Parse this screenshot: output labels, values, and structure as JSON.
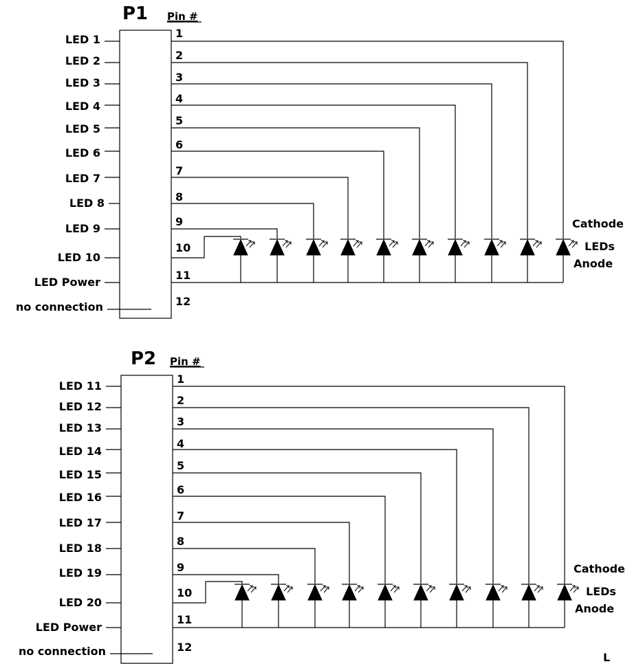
{
  "connectors": [
    {
      "title": "P1",
      "pin_header": "Pin #",
      "signals": [
        "LED 1",
        "LED 2",
        "LED 3",
        "LED 4",
        "LED 5",
        "LED 6",
        "LED 7",
        "LED 8",
        "LED 9",
        "LED 10",
        "LED Power",
        "no connection"
      ],
      "pins": [
        "1",
        "2",
        "3",
        "4",
        "5",
        "6",
        "7",
        "8",
        "9",
        "10",
        "11",
        "12"
      ],
      "side_labels": [
        "Cathode",
        "LEDs",
        "Anode"
      ],
      "led_count": 10
    },
    {
      "title": "P2",
      "pin_header": "Pin #",
      "signals": [
        "LED 11",
        "LED 12",
        "LED 13",
        "LED 14",
        "LED 15",
        "LED 16",
        "LED 17",
        "LED 18",
        "LED 19",
        "LED 20",
        "LED Power",
        "no connection"
      ],
      "pins": [
        "1",
        "2",
        "3",
        "4",
        "5",
        "6",
        "7",
        "8",
        "9",
        "10",
        "11",
        "12"
      ],
      "side_labels": [
        "Cathode",
        "LEDs",
        "Anode"
      ],
      "led_count": 10
    }
  ],
  "corner_mark": "L"
}
